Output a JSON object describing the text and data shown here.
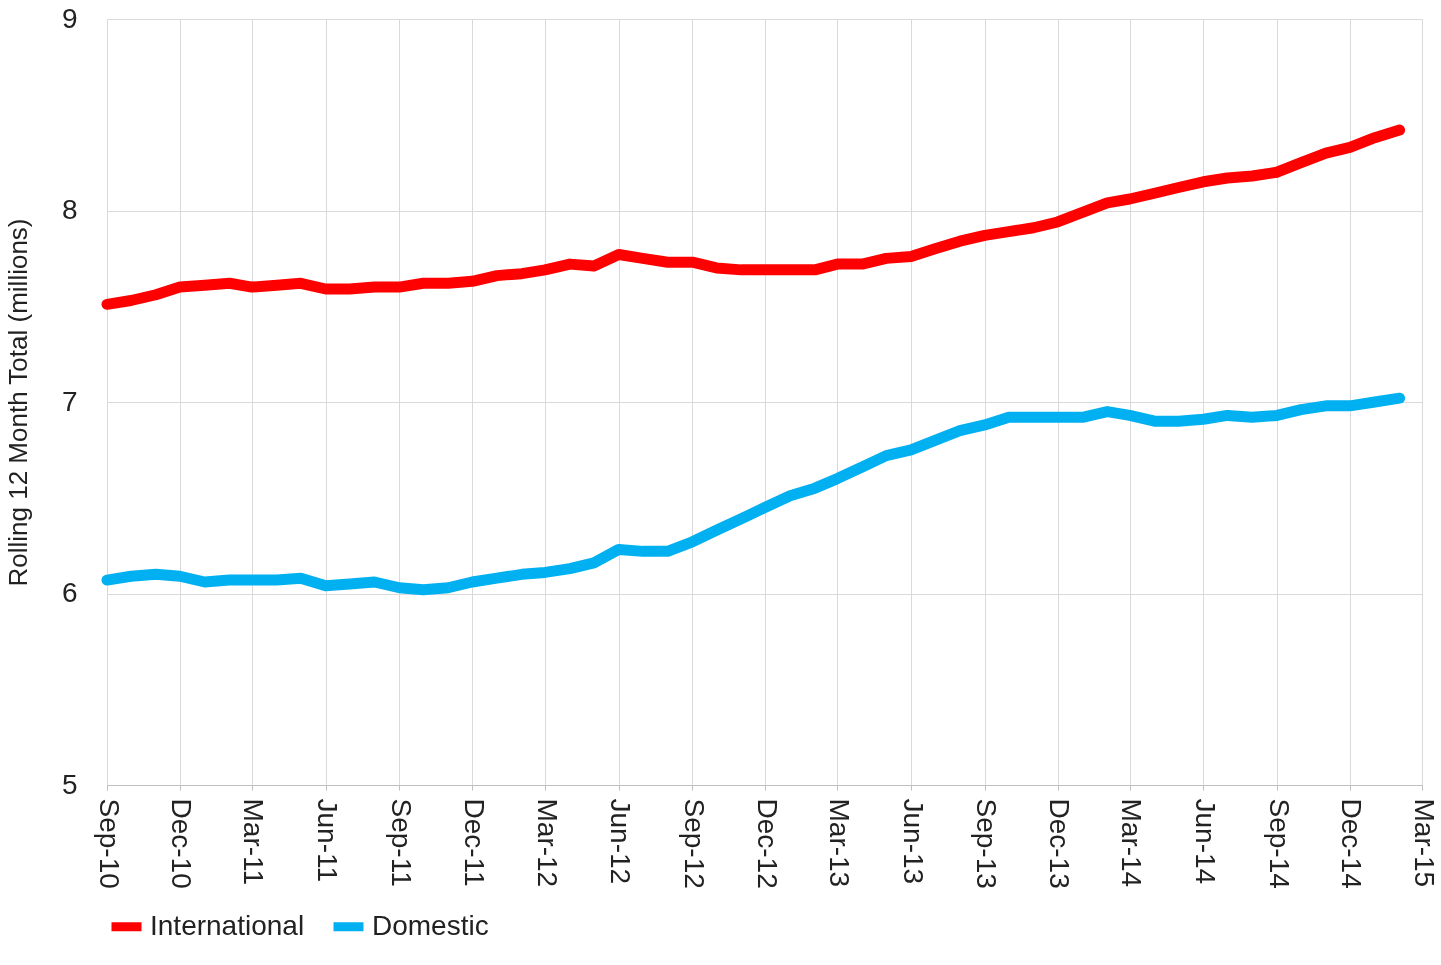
{
  "chart_data": {
    "type": "line",
    "ylabel": "Rolling 12 Month Total (millions)",
    "x": [
      "2010-09",
      "2010-10",
      "2010-11",
      "2010-12",
      "2011-01",
      "2011-02",
      "2011-03",
      "2011-04",
      "2011-05",
      "2011-06",
      "2011-07",
      "2011-08",
      "2011-09",
      "2011-10",
      "2011-11",
      "2011-12",
      "2012-01",
      "2012-02",
      "2012-03",
      "2012-04",
      "2012-05",
      "2012-06",
      "2012-07",
      "2012-08",
      "2012-09",
      "2012-10",
      "2012-11",
      "2012-12",
      "2013-01",
      "2013-02",
      "2013-03",
      "2013-04",
      "2013-05",
      "2013-06",
      "2013-07",
      "2013-08",
      "2013-09",
      "2013-10",
      "2013-11",
      "2013-12",
      "2014-01",
      "2014-02",
      "2014-03",
      "2014-04",
      "2014-05",
      "2014-06",
      "2014-07",
      "2014-08",
      "2014-09",
      "2014-10",
      "2014-11",
      "2014-12",
      "2015-01",
      "2015-02"
    ],
    "series": [
      {
        "name": "International",
        "color": "#ff0000",
        "values": [
          7.51,
          7.53,
          7.56,
          7.6,
          7.61,
          7.62,
          7.6,
          7.61,
          7.62,
          7.59,
          7.59,
          7.6,
          7.6,
          7.62,
          7.62,
          7.63,
          7.66,
          7.67,
          7.69,
          7.72,
          7.71,
          7.77,
          7.75,
          7.73,
          7.73,
          7.7,
          7.69,
          7.69,
          7.69,
          7.69,
          7.72,
          7.72,
          7.75,
          7.76,
          7.8,
          7.84,
          7.87,
          7.89,
          7.91,
          7.94,
          7.99,
          8.04,
          8.06,
          8.09,
          8.12,
          8.15,
          8.17,
          8.18,
          8.2,
          8.25,
          8.3,
          8.33,
          8.38,
          8.42
        ]
      },
      {
        "name": "Domestic",
        "color": "#00b0f0",
        "values": [
          6.07,
          6.09,
          6.1,
          6.09,
          6.06,
          6.07,
          6.07,
          6.07,
          6.08,
          6.04,
          6.05,
          6.06,
          6.03,
          6.02,
          6.03,
          6.06,
          6.08,
          6.1,
          6.11,
          6.13,
          6.16,
          6.23,
          6.22,
          6.22,
          6.27,
          6.33,
          6.39,
          6.45,
          6.51,
          6.55,
          6.6,
          6.66,
          6.72,
          6.75,
          6.8,
          6.85,
          6.88,
          6.92,
          6.92,
          6.92,
          6.92,
          6.95,
          6.93,
          6.9,
          6.9,
          6.91,
          6.93,
          6.92,
          6.93,
          6.96,
          6.98,
          6.98,
          7.0,
          7.02
        ]
      }
    ],
    "xlim": [
      "2010-09",
      "2015-03"
    ],
    "xticks": [
      {
        "value": "2010-09",
        "label": "Sep-10"
      },
      {
        "value": "2010-12",
        "label": "Dec-10"
      },
      {
        "value": "2011-03",
        "label": "Mar-11"
      },
      {
        "value": "2011-06",
        "label": "Jun-11"
      },
      {
        "value": "2011-09",
        "label": "Sep-11"
      },
      {
        "value": "2011-12",
        "label": "Dec-11"
      },
      {
        "value": "2012-03",
        "label": "Mar-12"
      },
      {
        "value": "2012-06",
        "label": "Jun-12"
      },
      {
        "value": "2012-09",
        "label": "Sep-12"
      },
      {
        "value": "2012-12",
        "label": "Dec-12"
      },
      {
        "value": "2013-03",
        "label": "Mar-13"
      },
      {
        "value": "2013-06",
        "label": "Jun-13"
      },
      {
        "value": "2013-09",
        "label": "Sep-13"
      },
      {
        "value": "2013-12",
        "label": "Dec-13"
      },
      {
        "value": "2014-03",
        "label": "Mar-14"
      },
      {
        "value": "2014-06",
        "label": "Jun-14"
      },
      {
        "value": "2014-09",
        "label": "Sep-14"
      },
      {
        "value": "2014-12",
        "label": "Dec-14"
      },
      {
        "value": "2015-03",
        "label": "Mar-15"
      }
    ],
    "ylim": [
      5,
      9
    ],
    "yticks": [
      5,
      6,
      7,
      8,
      9
    ],
    "grid": true,
    "legend": "bottom",
    "line_style": "solid"
  }
}
